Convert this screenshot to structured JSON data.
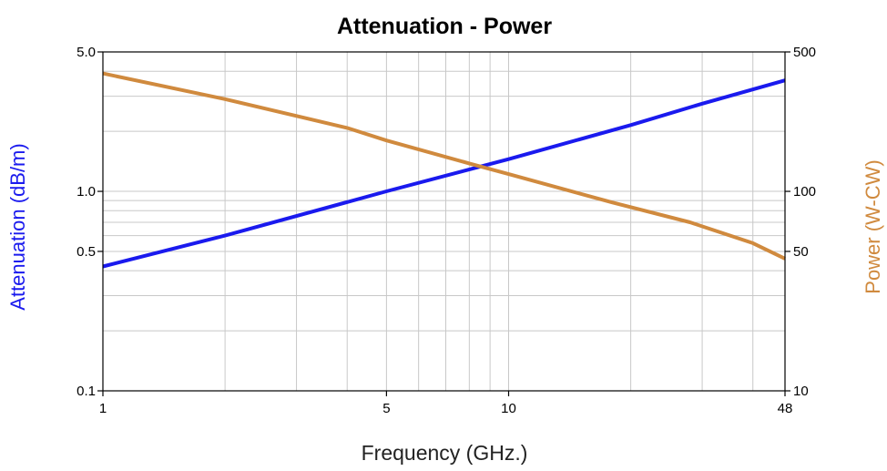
{
  "chart_data": {
    "type": "line",
    "title": "Attenuation - Power",
    "xlabel": "Frequency (GHz.)",
    "ylabel_left": "Attenuation (dB/m)",
    "ylabel_right": "Power (W-CW)",
    "x_scale": "log",
    "y_left_scale": "log",
    "y_right_scale": "log",
    "xlim": [
      1,
      48
    ],
    "ylim_left": [
      0.1,
      5.0
    ],
    "ylim_right": [
      10,
      500
    ],
    "x_ticks": [
      {
        "value": 1,
        "label": "1"
      },
      {
        "value": 5,
        "label": "5"
      },
      {
        "value": 10,
        "label": "10"
      },
      {
        "value": 48,
        "label": "48"
      }
    ],
    "y_left_ticks": [
      {
        "value": 0.1,
        "label": "0.1"
      },
      {
        "value": 0.5,
        "label": "0.5"
      },
      {
        "value": 1.0,
        "label": "1.0"
      },
      {
        "value": 5.0,
        "label": "5.0"
      }
    ],
    "y_right_ticks": [
      {
        "value": 10,
        "label": "10"
      },
      {
        "value": 50,
        "label": "50"
      },
      {
        "value": 100,
        "label": "100"
      },
      {
        "value": 500,
        "label": "500"
      }
    ],
    "grid": true,
    "series": [
      {
        "axis": "left",
        "color": "#1a1aee",
        "x": [
          1,
          2,
          5,
          10,
          20,
          30,
          48
        ],
        "y": [
          0.42,
          0.6,
          1.0,
          1.45,
          2.15,
          2.75,
          3.6
        ]
      },
      {
        "axis": "right",
        "color": "#d08a3e",
        "x": [
          1,
          2,
          4,
          5,
          8,
          10,
          18,
          28,
          40,
          48
        ],
        "y": [
          390,
          290,
          208,
          180,
          138,
          122,
          88,
          70,
          55,
          46
        ]
      }
    ]
  }
}
